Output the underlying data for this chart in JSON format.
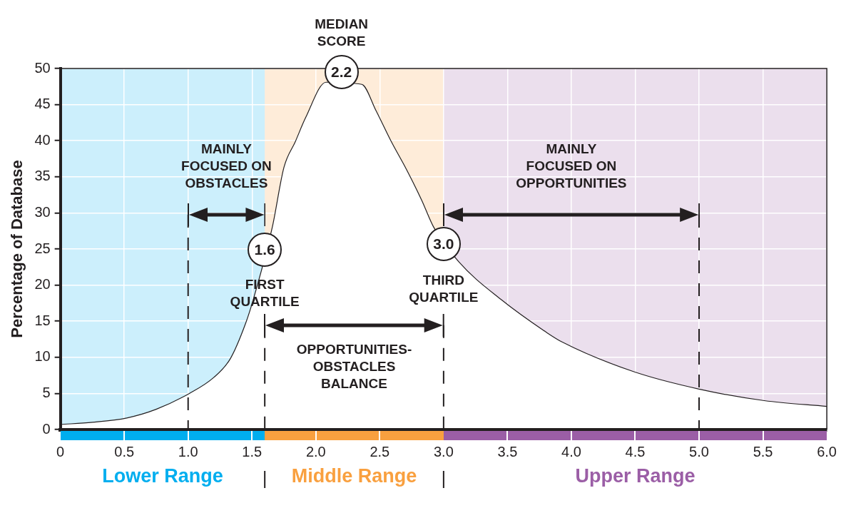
{
  "chart_data": {
    "type": "line",
    "ylabel": "Percentage of Database",
    "x": [
      0,
      0.25,
      0.52,
      0.75,
      1.01,
      1.2,
      1.33,
      1.45,
      1.51,
      1.66,
      1.75,
      1.84,
      1.92,
      2.08,
      2.36,
      2.47,
      2.59,
      2.71,
      2.83,
      2.92,
      3.12,
      3.45,
      3.81,
      3.93,
      4.49,
      5.0,
      5.51,
      6.0
    ],
    "series": [
      {
        "color": "#231f20",
        "values": [
          0.7,
          1.0,
          1.6,
          2.8,
          5.0,
          7.2,
          9.8,
          14.7,
          18.0,
          28.1,
          36.3,
          39.9,
          43.2,
          48.1,
          47.8,
          44.2,
          39.9,
          36.0,
          31.7,
          28.1,
          23.2,
          18.0,
          13.4,
          12.1,
          8.0,
          5.6,
          4.0,
          3.2
        ]
      }
    ],
    "xlim": [
      0,
      6
    ],
    "xticks": [
      0,
      0.5,
      {
        "value": 1,
        "label": "1.0"
      },
      1.5,
      {
        "value": 2,
        "label": "2.0"
      },
      2.5,
      {
        "value": 3,
        "label": "3.0"
      },
      3.5,
      {
        "value": 4,
        "label": "4.0"
      },
      4.5,
      {
        "value": 5,
        "label": "5.0"
      },
      5.5,
      {
        "value": 6,
        "label": "6.0"
      }
    ],
    "ylim": [
      0,
      50
    ],
    "yticks": [
      0,
      5,
      10,
      15,
      20,
      25,
      30,
      35,
      40,
      45,
      50
    ],
    "grid": true,
    "legend": false,
    "marker": "none",
    "bands": [
      {
        "axis": "x",
        "from": 0,
        "to": 1.6,
        "label": "Lower Range",
        "color": "#00aeef"
      },
      {
        "axis": "x",
        "from": 1.6,
        "to": 3.0,
        "label": "Middle Range",
        "color": "#f9a03f"
      },
      {
        "axis": "x",
        "from": 3.0,
        "to": 6,
        "label": "Upper Range",
        "color": "#9b5ea6"
      }
    ],
    "ref_lines": [
      {
        "axis": "x",
        "value": 1.0,
        "line_style": "dashed"
      },
      {
        "axis": "x",
        "value": 1.6,
        "line_style": "dashed"
      },
      {
        "axis": "x",
        "value": 3.0,
        "line_style": "dashed"
      },
      {
        "axis": "x",
        "value": 5.0,
        "line_style": "dashed"
      }
    ],
    "annotations": [
      "MEDIAN\nSCORE",
      {
        "text": "2.2",
        "x": 2.2,
        "y": 49.5
      },
      {
        "text": "1.6",
        "x": 1.6,
        "y": 24.9
      },
      {
        "text": "FIRST\nQUARTILE",
        "x": 1.6,
        "y": 18.9
      },
      {
        "text": "3.0",
        "x": 3.0,
        "y": 25.7
      },
      {
        "text": "THIRD\nQUARTILE",
        "x": 3.0,
        "y": 19.5
      },
      "MAINLY\nFOCUSED ON\nOBSTACLES",
      "OPPORTUNITIES-\nOBSTACLES\nBALANCE",
      "MAINLY\nFOCUSED ON\nOPPORTUNITIES"
    ]
  }
}
